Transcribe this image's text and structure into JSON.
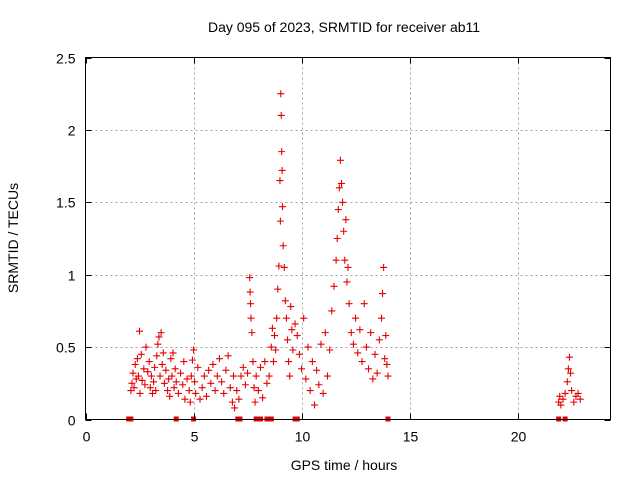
{
  "chart_data": {
    "type": "scatter",
    "title": "Day 095 of 2023, SRMTID for receiver ab11",
    "xlabel": "GPS time / hours",
    "ylabel": "SRMTID / TECUs",
    "xlim": [
      0,
      24.3
    ],
    "ylim": [
      0,
      2.5
    ],
    "xticks": [
      0,
      5,
      10,
      15,
      20
    ],
    "yticks": [
      0,
      0.5,
      1,
      1.5,
      2,
      2.5
    ],
    "ytick_labels": [
      "0",
      "0.5",
      "1",
      "1.5",
      "2",
      "2.5"
    ],
    "grid": true,
    "marker": "+",
    "color": "#e60000",
    "series": [
      {
        "name": "SRMTID",
        "points": [
          [
            2.1,
            0.2
          ],
          [
            2.15,
            0.25
          ],
          [
            2.2,
            0.32
          ],
          [
            2.25,
            0.22
          ],
          [
            2.3,
            0.38
          ],
          [
            2.35,
            0.28
          ],
          [
            2.4,
            0.42
          ],
          [
            2.45,
            0.3
          ],
          [
            2.5,
            0.61
          ],
          [
            2.52,
            0.18
          ],
          [
            2.58,
            0.45
          ],
          [
            2.62,
            0.27
          ],
          [
            2.7,
            0.35
          ],
          [
            2.75,
            0.24
          ],
          [
            2.8,
            0.5
          ],
          [
            2.88,
            0.33
          ],
          [
            2.95,
            0.4
          ],
          [
            3.0,
            0.22
          ],
          [
            3.05,
            0.3
          ],
          [
            3.1,
            0.18
          ],
          [
            3.15,
            0.26
          ],
          [
            3.2,
            0.36
          ],
          [
            3.25,
            0.2
          ],
          [
            3.3,
            0.44
          ],
          [
            3.35,
            0.52
          ],
          [
            3.4,
            0.57
          ],
          [
            3.45,
            0.3
          ],
          [
            3.5,
            0.6
          ],
          [
            3.55,
            0.38
          ],
          [
            3.6,
            0.46
          ],
          [
            3.65,
            0.25
          ],
          [
            3.72,
            0.34
          ],
          [
            3.8,
            0.2
          ],
          [
            3.85,
            0.28
          ],
          [
            3.9,
            0.16
          ],
          [
            3.95,
            0.42
          ],
          [
            4.0,
            0.3
          ],
          [
            4.05,
            0.46
          ],
          [
            4.1,
            0.22
          ],
          [
            4.15,
            0.35
          ],
          [
            4.2,
            0.26
          ],
          [
            4.3,
            0.18
          ],
          [
            4.4,
            0.32
          ],
          [
            4.5,
            0.24
          ],
          [
            4.55,
            0.4
          ],
          [
            4.6,
            0.14
          ],
          [
            4.7,
            0.28
          ],
          [
            4.8,
            0.2
          ],
          [
            4.85,
            0.12
          ],
          [
            4.9,
            0.3
          ],
          [
            4.95,
            0.41
          ],
          [
            5.0,
            0.48
          ],
          [
            5.05,
            0.26
          ],
          [
            5.1,
            0.18
          ],
          [
            5.2,
            0.36
          ],
          [
            5.3,
            0.14
          ],
          [
            5.4,
            0.22
          ],
          [
            5.5,
            0.3
          ],
          [
            5.6,
            0.16
          ],
          [
            5.7,
            0.34
          ],
          [
            5.8,
            0.25
          ],
          [
            5.9,
            0.38
          ],
          [
            6.0,
            0.2
          ],
          [
            6.1,
            0.3
          ],
          [
            6.2,
            0.42
          ],
          [
            6.3,
            0.26
          ],
          [
            6.4,
            0.18
          ],
          [
            6.5,
            0.34
          ],
          [
            6.6,
            0.44
          ],
          [
            6.7,
            0.22
          ],
          [
            6.8,
            0.12
          ],
          [
            6.85,
            0.3
          ],
          [
            6.9,
            0.08
          ],
          [
            7.0,
            0.2
          ],
          [
            7.1,
            0.14
          ],
          [
            7.2,
            0.3
          ],
          [
            7.3,
            0.36
          ],
          [
            7.4,
            0.24
          ],
          [
            7.5,
            0.32
          ],
          [
            7.6,
            0.98
          ],
          [
            7.62,
            0.88
          ],
          [
            7.64,
            0.8
          ],
          [
            7.66,
            0.7
          ],
          [
            7.7,
            0.6
          ],
          [
            7.75,
            0.4
          ],
          [
            7.8,
            0.22
          ],
          [
            7.85,
            0.12
          ],
          [
            7.9,
            0.3
          ],
          [
            8.0,
            0.2
          ],
          [
            8.1,
            0.36
          ],
          [
            8.2,
            0.15
          ],
          [
            8.3,
            0.4
          ],
          [
            8.4,
            0.25
          ],
          [
            8.5,
            0.3
          ],
          [
            8.6,
            0.5
          ],
          [
            8.65,
            0.63
          ],
          [
            8.7,
            0.4
          ],
          [
            8.75,
            0.58
          ],
          [
            8.8,
            0.48
          ],
          [
            8.85,
            0.7
          ],
          [
            8.9,
            0.9
          ],
          [
            8.95,
            1.06
          ],
          [
            9.0,
            1.65
          ],
          [
            9.02,
            1.37
          ],
          [
            9.04,
            2.25
          ],
          [
            9.06,
            2.1
          ],
          [
            9.08,
            1.85
          ],
          [
            9.1,
            1.72
          ],
          [
            9.12,
            1.47
          ],
          [
            9.15,
            1.2
          ],
          [
            9.2,
            1.05
          ],
          [
            9.25,
            0.82
          ],
          [
            9.3,
            0.7
          ],
          [
            9.35,
            0.55
          ],
          [
            9.4,
            0.4
          ],
          [
            9.45,
            0.3
          ],
          [
            9.5,
            0.78
          ],
          [
            9.55,
            0.62
          ],
          [
            9.6,
            0.48
          ],
          [
            9.7,
            0.66
          ],
          [
            9.8,
            0.58
          ],
          [
            9.9,
            0.45
          ],
          [
            10.0,
            0.35
          ],
          [
            10.1,
            0.7
          ],
          [
            10.2,
            0.28
          ],
          [
            10.3,
            0.5
          ],
          [
            10.4,
            0.2
          ],
          [
            10.5,
            0.4
          ],
          [
            10.6,
            0.1
          ],
          [
            10.7,
            0.34
          ],
          [
            10.8,
            0.24
          ],
          [
            10.9,
            0.52
          ],
          [
            11.0,
            0.18
          ],
          [
            11.1,
            0.6
          ],
          [
            11.2,
            0.3
          ],
          [
            11.3,
            0.48
          ],
          [
            11.4,
            0.75
          ],
          [
            11.5,
            0.92
          ],
          [
            11.6,
            1.1
          ],
          [
            11.65,
            1.25
          ],
          [
            11.7,
            1.45
          ],
          [
            11.75,
            1.6
          ],
          [
            11.8,
            1.79
          ],
          [
            11.85,
            1.63
          ],
          [
            11.9,
            1.5
          ],
          [
            11.95,
            1.3
          ],
          [
            12.0,
            1.1
          ],
          [
            12.05,
            1.38
          ],
          [
            12.1,
            0.95
          ],
          [
            12.15,
            1.05
          ],
          [
            12.2,
            0.8
          ],
          [
            12.3,
            0.6
          ],
          [
            12.4,
            0.52
          ],
          [
            12.5,
            0.7
          ],
          [
            12.6,
            0.46
          ],
          [
            12.7,
            0.62
          ],
          [
            12.8,
            0.4
          ],
          [
            12.9,
            0.8
          ],
          [
            13.0,
            0.5
          ],
          [
            13.1,
            0.35
          ],
          [
            13.2,
            0.6
          ],
          [
            13.3,
            0.28
          ],
          [
            13.4,
            0.45
          ],
          [
            13.5,
            0.32
          ],
          [
            13.6,
            0.55
          ],
          [
            13.7,
            0.7
          ],
          [
            13.75,
            0.87
          ],
          [
            13.8,
            1.05
          ],
          [
            13.85,
            0.42
          ],
          [
            13.9,
            0.58
          ],
          [
            13.95,
            0.38
          ],
          [
            14.0,
            0.3
          ],
          [
            21.9,
            0.12
          ],
          [
            21.95,
            0.16
          ],
          [
            22.0,
            0.1
          ],
          [
            22.1,
            0.14
          ],
          [
            22.2,
            0.18
          ],
          [
            22.3,
            0.26
          ],
          [
            22.35,
            0.35
          ],
          [
            22.4,
            0.43
          ],
          [
            22.45,
            0.32
          ],
          [
            22.5,
            0.2
          ],
          [
            22.6,
            0.12
          ],
          [
            22.7,
            0.16
          ],
          [
            22.8,
            0.18
          ],
          [
            22.9,
            0.14
          ]
        ]
      }
    ],
    "gap_markers_x": [
      2.0,
      2.1,
      4.2,
      5.0,
      7.05,
      7.15,
      7.9,
      8.0,
      8.1,
      8.4,
      8.5,
      8.6,
      9.7,
      9.8,
      14.0,
      21.9,
      22.2
    ]
  }
}
